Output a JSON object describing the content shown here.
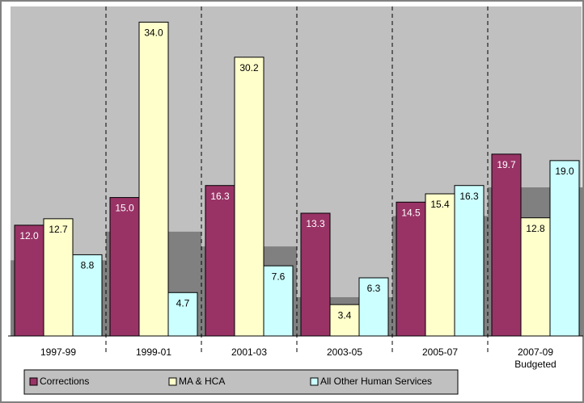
{
  "chart_data": {
    "type": "bar",
    "categories": [
      "1997-99",
      "1999-01",
      "2001-03",
      "2003-05",
      "2005-07",
      "2007-09\nBudgeted"
    ],
    "series": [
      {
        "name": "Corrections",
        "color": "#993366",
        "label_color": "#ffffff",
        "values": [
          12.0,
          15.0,
          16.3,
          13.3,
          14.5,
          19.7
        ],
        "value_labels": [
          "12.0",
          "15.0",
          "16.3",
          "13.3",
          "14.5",
          "19.7"
        ]
      },
      {
        "name": "MA & HCA",
        "color": "#ffffcc",
        "label_color": "#000000",
        "values": [
          12.7,
          34.0,
          30.2,
          3.4,
          15.4,
          12.8
        ],
        "value_labels": [
          "12.7",
          "34.0",
          "30.2",
          "3.4",
          "15.4",
          "12.8"
        ]
      },
      {
        "name": "All Other Human Services",
        "color": "#ccffff",
        "label_color": "#000000",
        "values": [
          8.8,
          4.7,
          7.6,
          6.3,
          16.3,
          19.0
        ],
        "value_labels": [
          "8.8",
          "4.7",
          "7.6",
          "6.3",
          "16.3",
          "19.0"
        ]
      },
      {
        "type": "step-area",
        "color": "#808080",
        "values": [
          8.2,
          11.3,
          9.7,
          4.2,
          13.0,
          16.1
        ]
      }
    ],
    "ylim": [
      0,
      35.7
    ],
    "plot_color": "#c0c0c0",
    "legend": "bottom-left"
  }
}
